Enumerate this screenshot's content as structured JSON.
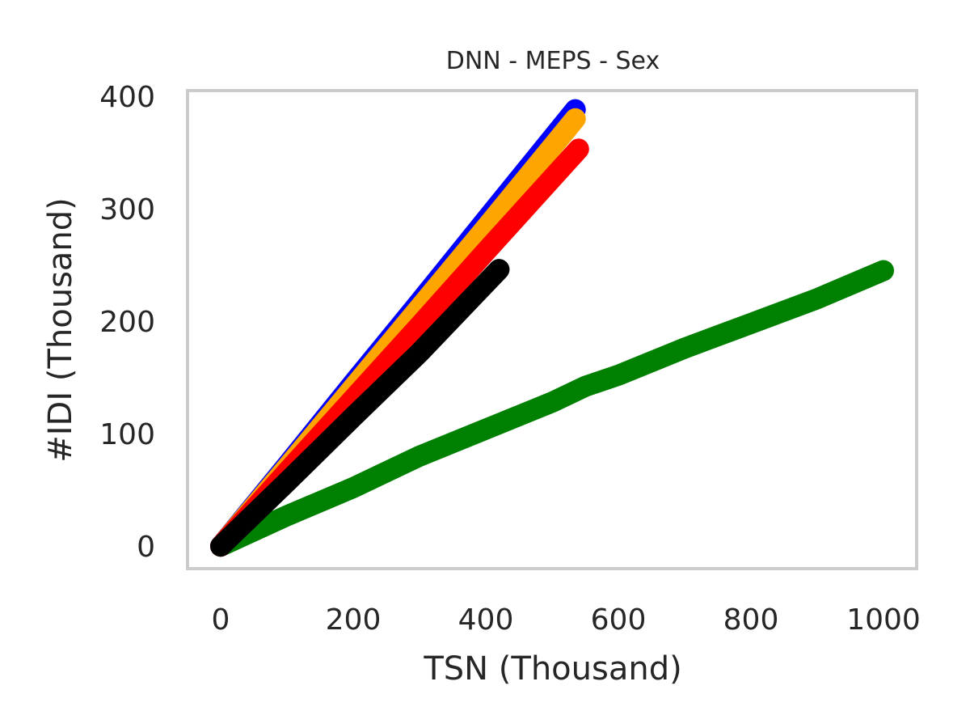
{
  "chart_data": {
    "type": "line",
    "title": "DNN - MEPS - Sex",
    "xlabel": "TSN (Thousand)",
    "ylabel": "#IDI (Thousand)",
    "xlim": [
      -50,
      1050
    ],
    "ylim": [
      -20,
      405
    ],
    "xticks": [
      0,
      200,
      400,
      600,
      800,
      1000
    ],
    "yticks": [
      0,
      100,
      200,
      300,
      400
    ],
    "grid": false,
    "series": [
      {
        "color": "#008000",
        "x": [
          0,
          100,
          200,
          300,
          400,
          500,
          550,
          600,
          700,
          800,
          900,
          1000
        ],
        "y": [
          0,
          27,
          52,
          80,
          104,
          128,
          142,
          152,
          176,
          198,
          220,
          245
        ]
      },
      {
        "color": "#0000ff",
        "x": [
          0,
          100,
          200,
          300,
          400,
          535
        ],
        "y": [
          0,
          72,
          145,
          217,
          290,
          388
        ]
      },
      {
        "color": "#ffa500",
        "x": [
          0,
          100,
          200,
          300,
          400,
          535
        ],
        "y": [
          0,
          70,
          141,
          212,
          283,
          380
        ]
      },
      {
        "color": "#ff0000",
        "x": [
          0,
          100,
          200,
          300,
          400,
          540
        ],
        "y": [
          0,
          66,
          131,
          196,
          262,
          353
        ]
      },
      {
        "color": "#000000",
        "x": [
          0,
          100,
          200,
          300,
          420
        ],
        "y": [
          0,
          57,
          115,
          172,
          246
        ]
      }
    ]
  }
}
